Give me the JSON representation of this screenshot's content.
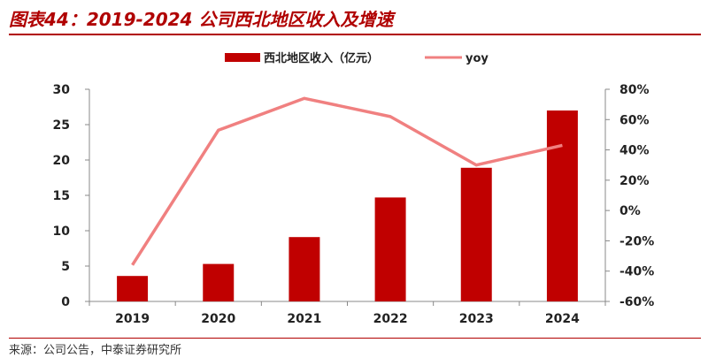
{
  "header": {
    "title": "图表44：2019-2024 公司西北地区收入及增速"
  },
  "footer": {
    "source": "来源：公司公告，中泰证券研究所"
  },
  "colors": {
    "bar": "#c00000",
    "line": "#f08080",
    "accent": "#b00000"
  },
  "chart_data": {
    "type": "bar",
    "categories": [
      "2019",
      "2020",
      "2021",
      "2022",
      "2023",
      "2024"
    ],
    "series": [
      {
        "name": "西北地区收入（亿元）",
        "type": "bar",
        "axis": "left",
        "values": [
          3.6,
          5.3,
          9.1,
          14.7,
          18.9,
          27.0
        ]
      },
      {
        "name": "yoy",
        "type": "line",
        "axis": "right",
        "values": [
          -0.36,
          0.53,
          0.74,
          0.62,
          0.3,
          0.43
        ]
      }
    ],
    "y_left": {
      "lim": [
        0,
        30
      ],
      "ticks": [
        "0",
        "5",
        "10",
        "15",
        "20",
        "25",
        "30"
      ]
    },
    "y_right": {
      "lim": [
        -0.6,
        0.8
      ],
      "ticks": [
        "-60%",
        "-40%",
        "-20%",
        "0%",
        "20%",
        "40%",
        "60%",
        "80%"
      ]
    },
    "grid": false,
    "legend_position": "top"
  }
}
